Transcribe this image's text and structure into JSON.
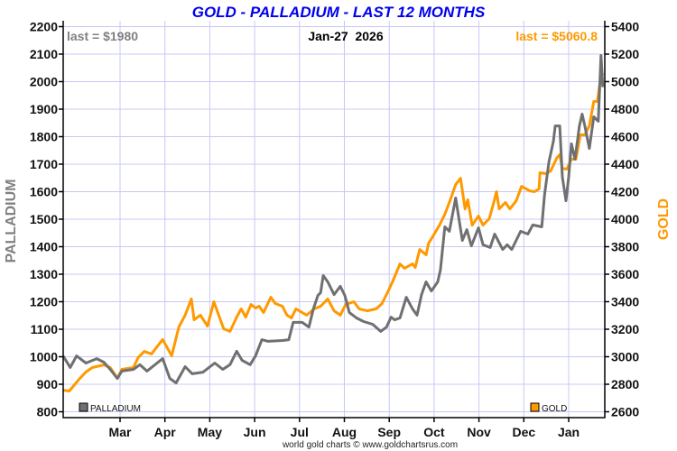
{
  "chart_data": {
    "type": "line",
    "title": "GOLD - PALLADIUM - LAST 12 MONTHS",
    "date_label": "Jan-27  2026",
    "footer": "world gold charts © www.goldchartsrus.com",
    "x_unit": "months since Mar 1 2025",
    "x_ticks": [
      {
        "m": 0,
        "label": "Mar"
      },
      {
        "m": 1,
        "label": "Apr"
      },
      {
        "m": 2,
        "label": "May"
      },
      {
        "m": 3,
        "label": "Jun"
      },
      {
        "m": 4,
        "label": "Jul"
      },
      {
        "m": 5,
        "label": "Aug"
      },
      {
        "m": 6,
        "label": "Sep"
      },
      {
        "m": 7,
        "label": "Oct"
      },
      {
        "m": 8,
        "label": "Nov"
      },
      {
        "m": 9,
        "label": "Dec"
      },
      {
        "m": 10,
        "label": "Jan"
      }
    ],
    "xlim": [
      -1.27,
      10.8
    ],
    "grid": true,
    "left_axis": {
      "label": "PALLADIUM",
      "ylim": [
        800,
        2200
      ],
      "ticks": [
        800,
        900,
        1000,
        1100,
        1200,
        1300,
        1400,
        1500,
        1600,
        1700,
        1800,
        1900,
        2000,
        2100,
        2200
      ],
      "color": "#707070"
    },
    "right_axis": {
      "label": "GOLD",
      "ylim": [
        2600,
        5400
      ],
      "ticks": [
        2600,
        2800,
        3000,
        3200,
        3400,
        3600,
        3800,
        4000,
        4200,
        4400,
        4600,
        4800,
        5000,
        5200,
        5400
      ],
      "color": "#ff9900"
    },
    "colors": {
      "title": "#0000ee",
      "grid": "#c8c8f4",
      "palladium": "#707070",
      "gold": "#ff9900"
    },
    "series": [
      {
        "name": "PALLADIUM",
        "axis": "left",
        "last_label": "last = $1980",
        "points": [
          [
            -1.27,
            1003
          ],
          [
            -1.11,
            961
          ],
          [
            -0.97,
            1003
          ],
          [
            -0.76,
            977
          ],
          [
            -0.52,
            993
          ],
          [
            -0.36,
            980
          ],
          [
            -0.22,
            954
          ],
          [
            -0.06,
            921
          ],
          [
            0.04,
            948
          ],
          [
            0.3,
            954
          ],
          [
            0.44,
            971
          ],
          [
            0.6,
            948
          ],
          [
            0.95,
            993
          ],
          [
            1.11,
            921
          ],
          [
            1.25,
            905
          ],
          [
            1.45,
            964
          ],
          [
            1.61,
            938
          ],
          [
            1.85,
            944
          ],
          [
            2.11,
            977
          ],
          [
            2.29,
            954
          ],
          [
            2.45,
            971
          ],
          [
            2.6,
            1020
          ],
          [
            2.72,
            987
          ],
          [
            2.9,
            971
          ],
          [
            3.02,
            1003
          ],
          [
            3.16,
            1062
          ],
          [
            3.3,
            1056
          ],
          [
            3.62,
            1059
          ],
          [
            3.76,
            1062
          ],
          [
            3.86,
            1125
          ],
          [
            4.06,
            1125
          ],
          [
            4.21,
            1108
          ],
          [
            4.31,
            1174
          ],
          [
            4.41,
            1223
          ],
          [
            4.47,
            1233
          ],
          [
            4.53,
            1295
          ],
          [
            4.63,
            1272
          ],
          [
            4.77,
            1226
          ],
          [
            4.91,
            1256
          ],
          [
            5.01,
            1223
          ],
          [
            5.11,
            1161
          ],
          [
            5.27,
            1141
          ],
          [
            5.43,
            1128
          ],
          [
            5.63,
            1118
          ],
          [
            5.81,
            1092
          ],
          [
            5.94,
            1108
          ],
          [
            6.04,
            1144
          ],
          [
            6.12,
            1134
          ],
          [
            6.24,
            1141
          ],
          [
            6.32,
            1184
          ],
          [
            6.38,
            1216
          ],
          [
            6.52,
            1174
          ],
          [
            6.62,
            1151
          ],
          [
            6.72,
            1226
          ],
          [
            6.82,
            1272
          ],
          [
            6.94,
            1239
          ],
          [
            7.08,
            1272
          ],
          [
            7.14,
            1315
          ],
          [
            7.24,
            1472
          ],
          [
            7.34,
            1456
          ],
          [
            7.48,
            1577
          ],
          [
            7.63,
            1423
          ],
          [
            7.73,
            1462
          ],
          [
            7.83,
            1403
          ],
          [
            7.99,
            1469
          ],
          [
            8.09,
            1407
          ],
          [
            8.25,
            1397
          ],
          [
            8.35,
            1446
          ],
          [
            8.53,
            1390
          ],
          [
            8.63,
            1407
          ],
          [
            8.73,
            1390
          ],
          [
            8.93,
            1456
          ],
          [
            9.09,
            1446
          ],
          [
            9.2,
            1479
          ],
          [
            9.4,
            1472
          ],
          [
            9.46,
            1587
          ],
          [
            9.56,
            1708
          ],
          [
            9.66,
            1784
          ],
          [
            9.7,
            1839
          ],
          [
            9.8,
            1839
          ],
          [
            9.86,
            1653
          ],
          [
            9.94,
            1567
          ],
          [
            10.0,
            1653
          ],
          [
            10.06,
            1774
          ],
          [
            10.14,
            1718
          ],
          [
            10.24,
            1839
          ],
          [
            10.3,
            1882
          ],
          [
            10.36,
            1839
          ],
          [
            10.46,
            1757
          ],
          [
            10.56,
            1872
          ],
          [
            10.66,
            1856
          ],
          [
            10.72,
            2095
          ],
          [
            10.76,
            1980
          ]
        ]
      },
      {
        "name": "GOLD",
        "axis": "right",
        "last_label": "last = $5060.8",
        "points": [
          [
            -1.27,
            2757
          ],
          [
            -1.13,
            2751
          ],
          [
            -0.93,
            2830
          ],
          [
            -0.76,
            2889
          ],
          [
            -0.62,
            2921
          ],
          [
            -0.36,
            2941
          ],
          [
            -0.22,
            2921
          ],
          [
            -0.06,
            2843
          ],
          [
            0.04,
            2908
          ],
          [
            0.3,
            2921
          ],
          [
            0.4,
            2993
          ],
          [
            0.54,
            3039
          ],
          [
            0.7,
            3020
          ],
          [
            0.95,
            3125
          ],
          [
            1.15,
            3007
          ],
          [
            1.31,
            3216
          ],
          [
            1.45,
            3302
          ],
          [
            1.59,
            3420
          ],
          [
            1.65,
            3269
          ],
          [
            1.79,
            3302
          ],
          [
            1.95,
            3223
          ],
          [
            2.09,
            3400
          ],
          [
            2.31,
            3203
          ],
          [
            2.45,
            3184
          ],
          [
            2.6,
            3288
          ],
          [
            2.7,
            3348
          ],
          [
            2.8,
            3288
          ],
          [
            2.92,
            3380
          ],
          [
            3.02,
            3354
          ],
          [
            3.1,
            3367
          ],
          [
            3.2,
            3321
          ],
          [
            3.36,
            3433
          ],
          [
            3.46,
            3387
          ],
          [
            3.62,
            3367
          ],
          [
            3.72,
            3302
          ],
          [
            3.82,
            3282
          ],
          [
            3.92,
            3348
          ],
          [
            4.16,
            3302
          ],
          [
            4.33,
            3348
          ],
          [
            4.47,
            3367
          ],
          [
            4.63,
            3420
          ],
          [
            4.77,
            3334
          ],
          [
            4.91,
            3302
          ],
          [
            5.03,
            3380
          ],
          [
            5.21,
            3400
          ],
          [
            5.33,
            3348
          ],
          [
            5.51,
            3334
          ],
          [
            5.71,
            3348
          ],
          [
            5.84,
            3387
          ],
          [
            5.98,
            3479
          ],
          [
            6.08,
            3551
          ],
          [
            6.24,
            3675
          ],
          [
            6.34,
            3643
          ],
          [
            6.52,
            3675
          ],
          [
            6.58,
            3649
          ],
          [
            6.68,
            3780
          ],
          [
            6.82,
            3741
          ],
          [
            6.88,
            3826
          ],
          [
            6.98,
            3879
          ],
          [
            7.12,
            3957
          ],
          [
            7.24,
            4036
          ],
          [
            7.34,
            4121
          ],
          [
            7.48,
            4252
          ],
          [
            7.59,
            4298
          ],
          [
            7.69,
            4075
          ],
          [
            7.75,
            4141
          ],
          [
            7.85,
            3957
          ],
          [
            7.99,
            4023
          ],
          [
            8.09,
            3957
          ],
          [
            8.23,
            4003
          ],
          [
            8.33,
            4121
          ],
          [
            8.39,
            4200
          ],
          [
            8.45,
            4075
          ],
          [
            8.59,
            4121
          ],
          [
            8.69,
            4075
          ],
          [
            8.83,
            4134
          ],
          [
            8.95,
            4239
          ],
          [
            9.13,
            4206
          ],
          [
            9.24,
            4200
          ],
          [
            9.34,
            4220
          ],
          [
            9.36,
            4338
          ],
          [
            9.5,
            4331
          ],
          [
            9.6,
            4351
          ],
          [
            9.74,
            4449
          ],
          [
            9.8,
            4469
          ],
          [
            9.86,
            4370
          ],
          [
            9.96,
            4364
          ],
          [
            10.06,
            4436
          ],
          [
            10.16,
            4436
          ],
          [
            10.26,
            4613
          ],
          [
            10.36,
            4613
          ],
          [
            10.46,
            4679
          ],
          [
            10.56,
            4856
          ],
          [
            10.64,
            4856
          ],
          [
            10.7,
            5000
          ],
          [
            10.76,
            5060.8
          ]
        ]
      }
    ]
  }
}
